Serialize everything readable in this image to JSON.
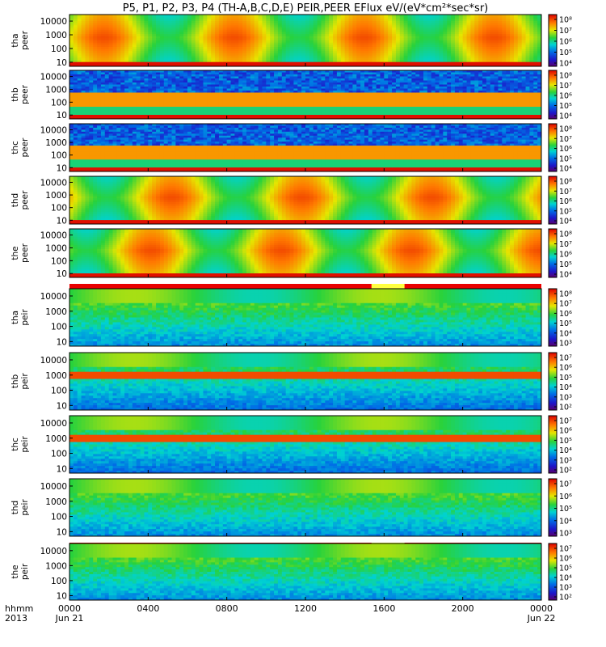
{
  "chart_data": {
    "type": "heatmap",
    "title": "P5, P1, P2, P3, P4 (TH-A,B,C,D,E) PEIR,PEER EFlux eV/(eV*cm²*sec*sr)",
    "x_tick_labels": [
      "0000",
      "0400",
      "0800",
      "1200",
      "1600",
      "2000",
      "0000"
    ],
    "x_date_labels": [
      "Jun 21",
      "Jun 22"
    ],
    "x_axis_label_line1": "hhmm",
    "x_axis_label_line2": "2013",
    "x_range_hours": [
      0,
      24
    ],
    "y_scale": "log",
    "y_range_eV": [
      5,
      30000
    ],
    "panels": [
      {
        "probe": "tha",
        "species": "peer",
        "label1": "tha",
        "label2": "peer",
        "y_ticks": [
          "10000",
          "1000",
          "100",
          "10"
        ],
        "cb_ticks": [
          "10⁸",
          "10⁷",
          "10⁶",
          "10⁵",
          "10⁴"
        ],
        "status_bar": false
      },
      {
        "probe": "thb",
        "species": "peer",
        "label1": "thb",
        "label2": "peer",
        "y_ticks": [
          "10000",
          "1000",
          "100",
          "10"
        ],
        "cb_ticks": [
          "10⁸",
          "10⁷",
          "10⁶",
          "10⁵",
          "10⁴"
        ],
        "status_bar": false
      },
      {
        "probe": "thc",
        "species": "peer",
        "label1": "thc",
        "label2": "peer",
        "y_ticks": [
          "10000",
          "1000",
          "100",
          "10"
        ],
        "cb_ticks": [
          "10⁸",
          "10⁷",
          "10⁶",
          "10⁵",
          "10⁴"
        ],
        "status_bar": false
      },
      {
        "probe": "thd",
        "species": "peer",
        "label1": "thd",
        "label2": "peer",
        "y_ticks": [
          "10000",
          "1000",
          "100",
          "10"
        ],
        "cb_ticks": [
          "10⁸",
          "10⁷",
          "10⁶",
          "10⁵",
          "10⁴"
        ],
        "status_bar": false
      },
      {
        "probe": "the",
        "species": "peer",
        "label1": "the",
        "label2": "peer",
        "y_ticks": [
          "10000",
          "1000",
          "100",
          "10"
        ],
        "cb_ticks": [
          "10⁸",
          "10⁷",
          "10⁶",
          "10⁵",
          "10⁴"
        ],
        "status_bar": true
      },
      {
        "probe": "tha",
        "species": "peir",
        "label1": "tha",
        "label2": "peir",
        "y_ticks": [
          "10000",
          "1000",
          "100",
          "10"
        ],
        "cb_ticks": [
          "10⁸",
          "10⁷",
          "10⁶",
          "10⁵",
          "10⁴",
          "10³"
        ],
        "status_bar": true
      },
      {
        "probe": "thb",
        "species": "peir",
        "label1": "thb",
        "label2": "peir",
        "y_ticks": [
          "10000",
          "1000",
          "100",
          "10"
        ],
        "cb_ticks": [
          "10⁷",
          "10⁶",
          "10⁵",
          "10⁴",
          "10³",
          "10²"
        ],
        "status_bar": true
      },
      {
        "probe": "thc",
        "species": "peir",
        "label1": "thc",
        "label2": "peir",
        "y_ticks": [
          "10000",
          "1000",
          "100",
          "10"
        ],
        "cb_ticks": [
          "10⁷",
          "10⁶",
          "10⁵",
          "10⁴",
          "10³",
          "10²"
        ],
        "status_bar": true
      },
      {
        "probe": "thd",
        "species": "peir",
        "label1": "thd",
        "label2": "peir",
        "y_ticks": [
          "10000",
          "1000",
          "100",
          "10"
        ],
        "cb_ticks": [
          "10⁷",
          "10⁶",
          "10⁵",
          "10⁴",
          "10³"
        ],
        "status_bar": true
      },
      {
        "probe": "the",
        "species": "peir",
        "label1": "the",
        "label2": "peir",
        "y_ticks": [
          "10000",
          "1000",
          "100",
          "10"
        ],
        "cb_ticks": [
          "10⁷",
          "10⁶",
          "10⁵",
          "10⁴",
          "10³",
          "10²"
        ],
        "status_bar": false
      }
    ]
  }
}
